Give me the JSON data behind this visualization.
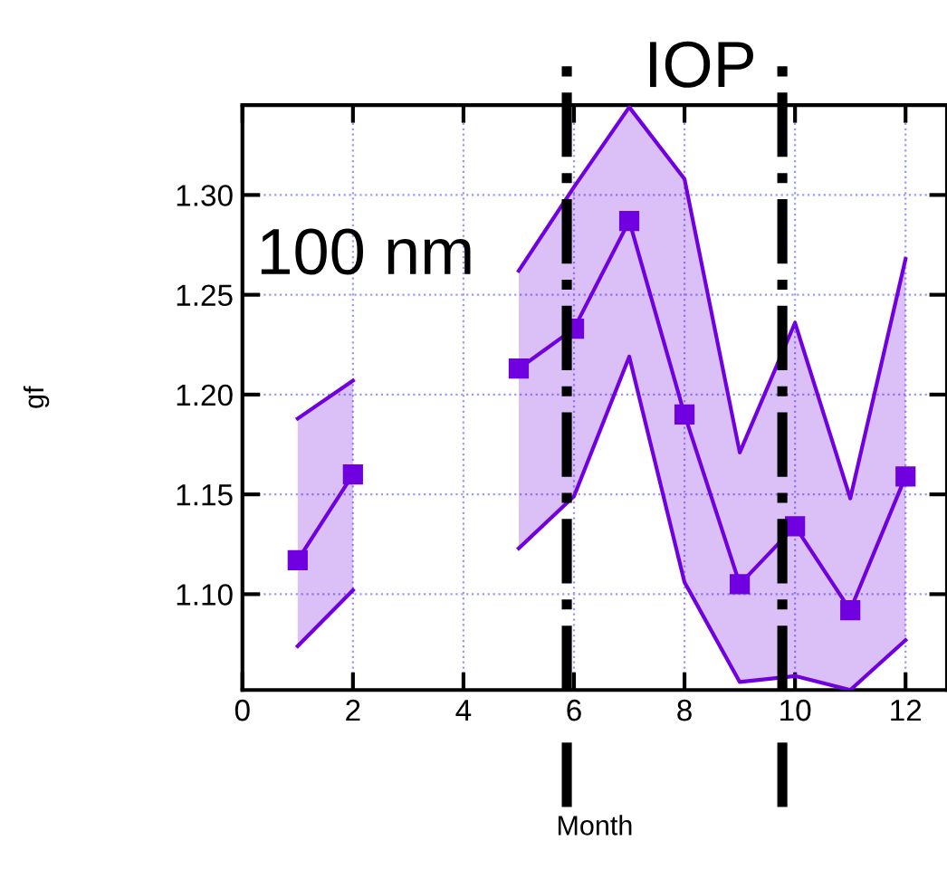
{
  "chart_data": {
    "type": "line",
    "xlabel": "Month",
    "ylabel": "gf",
    "x": [
      1,
      2,
      3,
      4,
      5,
      6,
      7,
      8,
      9,
      10,
      11,
      12
    ],
    "series": [
      {
        "color": "#7000e0",
        "marker": "square",
        "values": [
          1.117,
          1.16,
          null,
          null,
          1.213,
          1.233,
          1.287,
          1.19,
          1.105,
          1.134,
          1.092,
          1.159
        ],
        "lower": [
          1.074,
          1.102,
          null,
          null,
          1.123,
          1.149,
          1.219,
          1.106,
          1.056,
          1.059,
          1.052,
          1.077
        ],
        "upper": [
          1.188,
          1.207,
          null,
          null,
          1.262,
          1.304,
          1.344,
          1.308,
          1.171,
          1.236,
          1.148,
          1.268
        ]
      },
      {
        "color": "#7000e0",
        "marker": "none",
        "values": [
          1.074,
          1.102,
          null,
          null,
          1.123,
          1.149,
          1.219,
          1.106,
          1.056,
          1.059,
          1.052,
          1.077
        ]
      },
      {
        "color": "#7000e0",
        "marker": "none",
        "values": [
          1.188,
          1.207,
          null,
          null,
          1.262,
          1.304,
          1.344,
          1.308,
          1.171,
          1.236,
          1.148,
          1.268
        ]
      }
    ],
    "xlim": [
      0,
      12.75
    ],
    "xticks": [
      0,
      2,
      4,
      6,
      8,
      10,
      12
    ],
    "ylim": [
      1.052,
      1.345
    ],
    "yticks": [
      {
        "value": 1.1,
        "label": "1.10"
      },
      {
        "value": 1.15,
        "label": "1.15"
      },
      {
        "value": 1.2,
        "label": "1.20"
      },
      {
        "value": 1.25,
        "label": "1.25"
      },
      {
        "value": 1.3,
        "label": "1.30"
      }
    ],
    "grid": true,
    "legend": false,
    "ref_lines": [
      {
        "axis": "x",
        "value": 5.87,
        "color": "#000000",
        "line_style": "dashdot"
      },
      {
        "axis": "x",
        "value": 9.77,
        "color": "#000000",
        "line_style": "dashdot"
      }
    ],
    "annotations": [
      "100 nm",
      "IOP"
    ]
  }
}
